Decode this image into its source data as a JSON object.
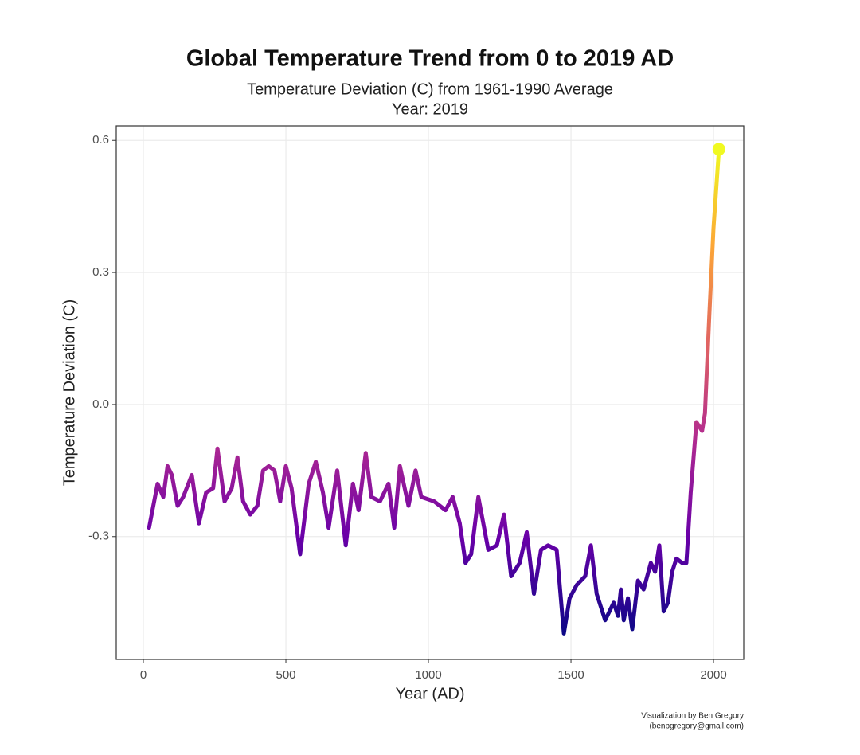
{
  "chart_data": {
    "type": "line",
    "title": "Global Temperature Trend from 0 to 2019 AD",
    "subtitle": "Temperature Deviation (C) from 1961-1990 Average",
    "subtitle2": "Year:  2019",
    "xlabel": "Year (AD)",
    "ylabel": "Temperature Deviation (C)",
    "caption": [
      "Visualization by Ben Gregory",
      "(benpgregory@gmail.com)"
    ],
    "x": [
      20,
      50,
      70,
      85,
      100,
      120,
      140,
      170,
      195,
      220,
      245,
      260,
      285,
      310,
      330,
      350,
      375,
      400,
      420,
      440,
      460,
      480,
      500,
      520,
      550,
      580,
      605,
      630,
      650,
      680,
      710,
      735,
      755,
      780,
      800,
      830,
      860,
      880,
      900,
      930,
      955,
      975,
      1020,
      1060,
      1085,
      1110,
      1130,
      1150,
      1175,
      1210,
      1240,
      1265,
      1290,
      1320,
      1345,
      1370,
      1395,
      1420,
      1450,
      1475,
      1495,
      1520,
      1550,
      1570,
      1590,
      1620,
      1650,
      1665,
      1675,
      1685,
      1700,
      1715,
      1735,
      1755,
      1780,
      1795,
      1810,
      1825,
      1840,
      1855,
      1870,
      1890,
      1905,
      1920,
      1940,
      1960,
      1970,
      1985,
      2000,
      2019
    ],
    "values": [
      -0.28,
      -0.18,
      -0.21,
      -0.14,
      -0.16,
      -0.23,
      -0.21,
      -0.16,
      -0.27,
      -0.2,
      -0.19,
      -0.1,
      -0.22,
      -0.19,
      -0.12,
      -0.22,
      -0.25,
      -0.23,
      -0.15,
      -0.14,
      -0.15,
      -0.22,
      -0.14,
      -0.19,
      -0.34,
      -0.18,
      -0.13,
      -0.2,
      -0.28,
      -0.15,
      -0.32,
      -0.18,
      -0.24,
      -0.11,
      -0.21,
      -0.22,
      -0.18,
      -0.28,
      -0.14,
      -0.23,
      -0.15,
      -0.21,
      -0.22,
      -0.24,
      -0.21,
      -0.27,
      -0.36,
      -0.34,
      -0.21,
      -0.33,
      -0.32,
      -0.25,
      -0.39,
      -0.36,
      -0.29,
      -0.43,
      -0.33,
      -0.32,
      -0.33,
      -0.52,
      -0.44,
      -0.41,
      -0.39,
      -0.32,
      -0.43,
      -0.49,
      -0.45,
      -0.48,
      -0.42,
      -0.49,
      -0.44,
      -0.51,
      -0.4,
      -0.42,
      -0.36,
      -0.38,
      -0.32,
      -0.47,
      -0.45,
      -0.38,
      -0.35,
      -0.36,
      -0.36,
      -0.2,
      -0.04,
      -0.06,
      -0.02,
      0.2,
      0.4,
      0.58
    ],
    "colormap": [
      "#0d0887",
      "#6a00a8",
      "#b12a90",
      "#e16462",
      "#fca636",
      "#f0f921"
    ],
    "xlim": [
      -95,
      2106
    ],
    "ylim": [
      -0.579,
      0.633
    ],
    "xticks": [
      0,
      500,
      1000,
      1500,
      2000
    ],
    "yticks": [
      {
        "value": -0.3,
        "label": "-0.3"
      },
      {
        "value": 0,
        "label": "0.0"
      },
      {
        "value": 0.3,
        "label": "0.3"
      },
      {
        "value": 0.6,
        "label": "0.6"
      }
    ],
    "grid": true
  }
}
